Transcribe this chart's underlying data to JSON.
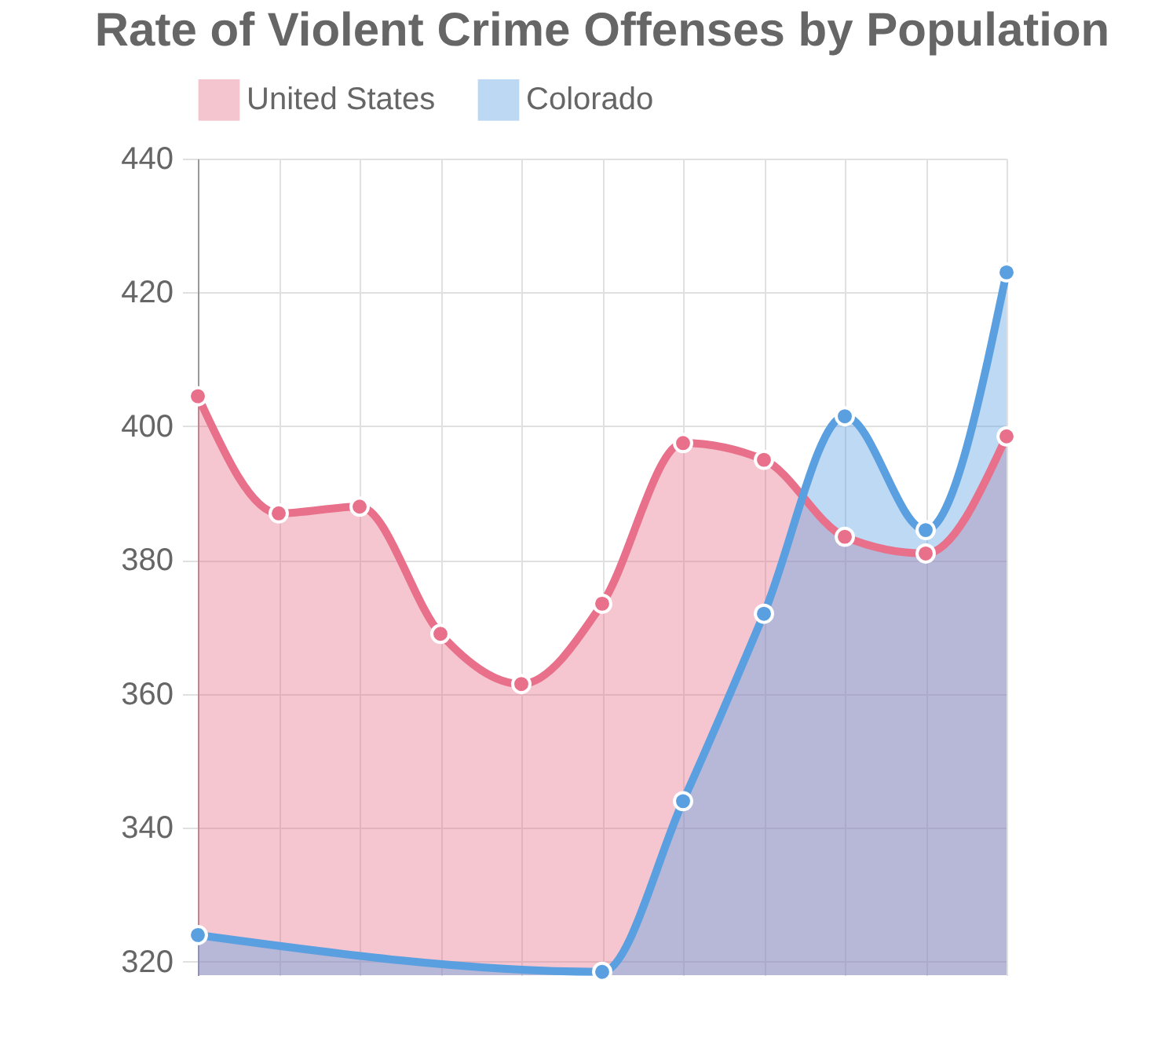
{
  "chart_data": {
    "type": "area",
    "title": "Rate of Violent Crime Offenses by Population",
    "categories": [
      null,
      null,
      null,
      null,
      null,
      null,
      null,
      null,
      null,
      null,
      null
    ],
    "series": [
      {
        "name": "United States",
        "color": "#e8708a",
        "values": [
          404.5,
          387,
          388,
          369,
          361.5,
          373.5,
          397.5,
          395,
          383.5,
          381,
          398.5
        ]
      },
      {
        "name": "Colorado",
        "color": "#5a9fe0",
        "values": [
          324,
          null,
          null,
          null,
          null,
          318.5,
          344,
          372,
          401.5,
          384.5,
          423
        ]
      }
    ],
    "ylim": [
      318,
      440
    ],
    "yticks": [
      320,
      340,
      360,
      380,
      400,
      420,
      440
    ],
    "grid": true,
    "legend": "top",
    "marker": "circle",
    "tick_labels": "y"
  }
}
